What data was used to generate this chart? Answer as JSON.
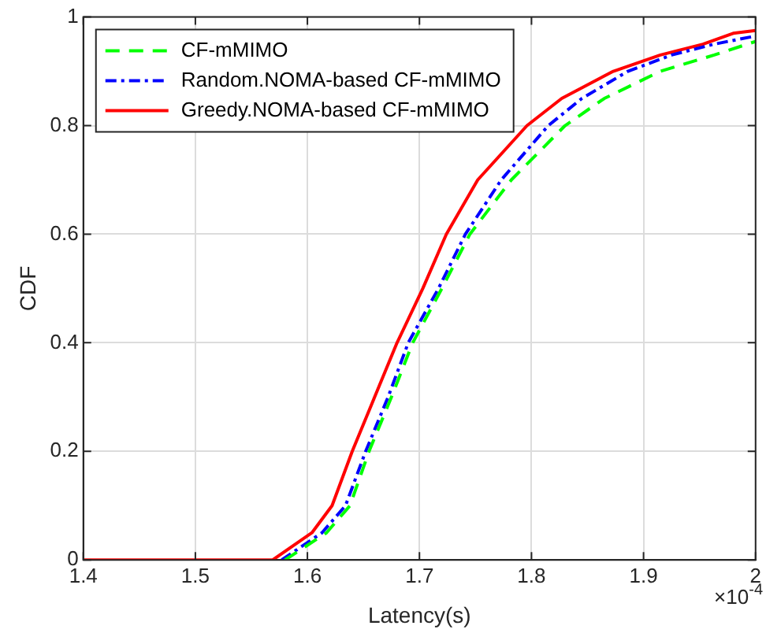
{
  "chart_data": {
    "type": "line",
    "xlabel": "Latency(s)",
    "ylabel": "CDF",
    "annotations": [
      "×10$^{-4}$"
    ],
    "xlim": [
      1.4,
      2
    ],
    "xticks": [
      1.4,
      1.5,
      1.6,
      1.7,
      1.8,
      1.9,
      2
    ],
    "ylim": [
      0,
      1
    ],
    "yticks": [
      0,
      0.2,
      0.4,
      0.6,
      0.8,
      1
    ],
    "grid": true,
    "legend": "top left",
    "marker": "none",
    "series": [
      {
        "name": "CF-mMIMO",
        "color": "#00ff00",
        "line_style": "dashed",
        "x": [
          1.58,
          1.617,
          1.638,
          1.655,
          1.675,
          1.694,
          1.72,
          1.745,
          1.782,
          1.83,
          1.865,
          1.915,
          1.963,
          2
        ],
        "values": [
          0,
          0.05,
          0.1,
          0.2,
          0.3,
          0.4,
          0.5,
          0.6,
          0.7,
          0.8,
          0.85,
          0.9,
          0.93,
          0.955
        ]
      },
      {
        "name": "Random.NOMA-based CF-mMIMO",
        "color": "#0000ff",
        "line_style": "dashdot",
        "x": [
          1.577,
          1.613,
          1.634,
          1.652,
          1.672,
          1.69,
          1.717,
          1.741,
          1.773,
          1.815,
          1.845,
          1.886,
          1.925,
          1.963,
          2
        ],
        "values": [
          0,
          0.05,
          0.1,
          0.2,
          0.3,
          0.4,
          0.5,
          0.6,
          0.7,
          0.8,
          0.85,
          0.9,
          0.93,
          0.95,
          0.965
        ]
      },
      {
        "name": "Greedy.NOMA-based CF-mMIMO",
        "color": "#ff0000",
        "line_style": "solid",
        "x": [
          1.4,
          1.569,
          1.604,
          1.622,
          1.64,
          1.66,
          1.68,
          1.703,
          1.724,
          1.752,
          1.796,
          1.827,
          1.873,
          1.915,
          1.953,
          1.98,
          2
        ],
        "values": [
          0,
          0,
          0.05,
          0.1,
          0.2,
          0.3,
          0.4,
          0.5,
          0.6,
          0.7,
          0.8,
          0.85,
          0.9,
          0.93,
          0.95,
          0.97,
          0.975
        ]
      }
    ]
  }
}
